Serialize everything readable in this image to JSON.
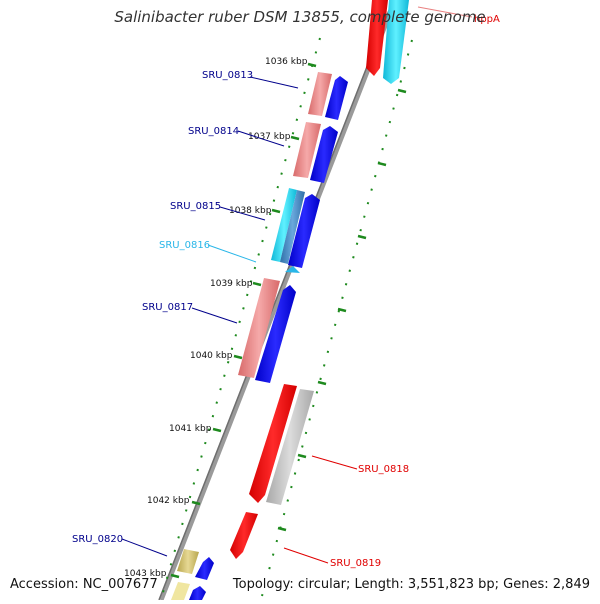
{
  "title": "Salinibacter ruber DSM 13855, complete genome",
  "footer": {
    "accession": "Accession: NC_007677",
    "topology": "Topology: circular; Length: 3,551,823 bp; Genes: 2,849"
  },
  "scale_labels": [
    "1036 kbp",
    "1037 kbp",
    "1038 kbp",
    "1039 kbp",
    "1040 kbp",
    "1041 kbp",
    "1042 kbp",
    "1043 kbp"
  ],
  "gene_labels": [
    {
      "name": "SRU_0813",
      "color": "#00008b"
    },
    {
      "name": "SRU_0814",
      "color": "#00008b"
    },
    {
      "name": "SRU_0815",
      "color": "#00008b"
    },
    {
      "name": "SRU_0816",
      "color": "#29b6e8"
    },
    {
      "name": "SRU_0817",
      "color": "#00008b"
    },
    {
      "name": "SRU_0818",
      "color": "#e00000"
    },
    {
      "name": "SRU_0819",
      "color": "#e00000"
    },
    {
      "name": "SRU_0820",
      "color": "#00008b"
    },
    {
      "name": "hppA",
      "color": "#e00000"
    }
  ],
  "colors": {
    "backbone": "#808080",
    "scale_tick": "#1e8a1e",
    "pink": "#e98080",
    "blue": "#0000ee",
    "red": "#ff0000",
    "cyan": "#22d8ee",
    "gray": "#bdbdbd",
    "olive": "#c8b96a"
  }
}
